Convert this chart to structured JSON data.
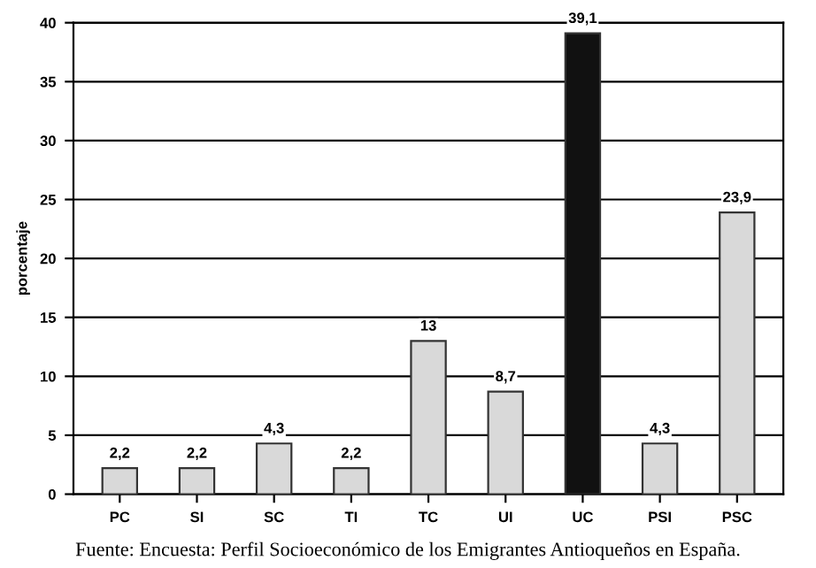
{
  "chart_data": {
    "type": "bar",
    "ylabel": "porcentaje",
    "categories": [
      "PC",
      "SI",
      "SC",
      "TI",
      "TC",
      "UI",
      "UC",
      "PSI",
      "PSC"
    ],
    "values": [
      2.2,
      2.2,
      4.3,
      2.2,
      13,
      8.7,
      39.1,
      4.3,
      23.9
    ],
    "colors": [
      "#d9d9d9",
      "#d9d9d9",
      "#d9d9d9",
      "#d9d9d9",
      "#d9d9d9",
      "#d9d9d9",
      "#111111",
      "#d9d9d9",
      "#d9d9d9"
    ],
    "value_labels": [
      "2,2",
      "2,2",
      "4,3",
      "2,2",
      "13",
      "8,7",
      "39,1",
      "4,3",
      "23,9"
    ],
    "ylim": [
      0,
      40
    ],
    "yticks": [
      0,
      5,
      10,
      15,
      20,
      25,
      30,
      35,
      40
    ],
    "grid": "y",
    "annotations": [
      "Fuente: Encuesta: Perfil Socioeconómico de los Emigrantes Antioqueños en España."
    ]
  }
}
